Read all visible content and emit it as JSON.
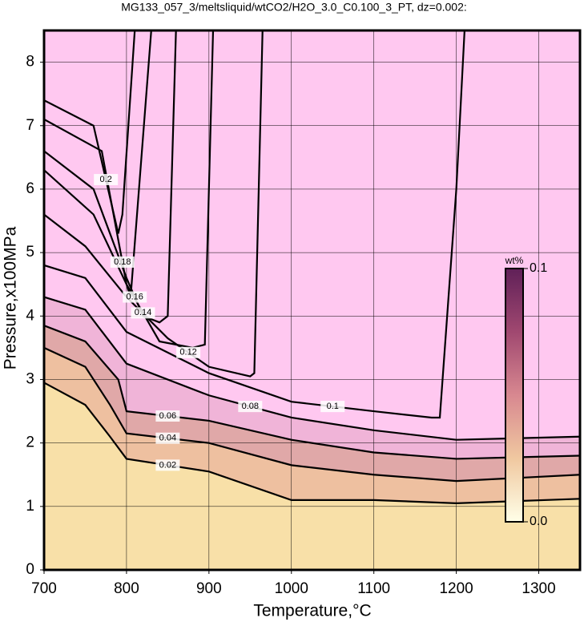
{
  "chart_data": {
    "type": "contour",
    "title": "MG133_057_3/meltsliquid/wtCO2/H2O_3.0_C0.100_3_PT, dz=0.002:",
    "xlabel": "Temperature,°C",
    "ylabel": "Pressure,x100MPa",
    "xlim": [
      700,
      1350
    ],
    "xticks": [
      700,
      800,
      900,
      1000,
      1100,
      1200,
      1300
    ],
    "ylim": [
      0,
      8.5
    ],
    "yticks": [
      0,
      1,
      2,
      3,
      4,
      5,
      6,
      7,
      8
    ],
    "grid": true,
    "background": "#ffc8f0",
    "contours": [
      {
        "level": 0.02,
        "fill": "#f8e0a8",
        "x": [
          700,
          750,
          780,
          800,
          900,
          1000,
          1100,
          1200,
          1350
        ],
        "y": [
          2.95,
          2.6,
          2.1,
          1.75,
          1.55,
          1.1,
          1.1,
          1.05,
          1.12
        ]
      },
      {
        "level": 0.04,
        "fill": "#eec0a0",
        "x": [
          700,
          750,
          780,
          800,
          900,
          1000,
          1100,
          1200,
          1350
        ],
        "y": [
          3.5,
          3.2,
          2.6,
          2.15,
          2.0,
          1.65,
          1.5,
          1.4,
          1.5
        ]
      },
      {
        "level": 0.06,
        "fill": "#e0a8a8",
        "x": [
          700,
          750,
          790,
          800,
          900,
          1000,
          1100,
          1200,
          1350
        ],
        "y": [
          3.85,
          3.6,
          3.0,
          2.5,
          2.35,
          2.05,
          1.85,
          1.75,
          1.8
        ]
      },
      {
        "level": 0.08,
        "fill": "#f0b4d8",
        "x": [
          700,
          750,
          800,
          900,
          1000,
          1100,
          1200,
          1350
        ],
        "y": [
          4.3,
          4.1,
          3.25,
          2.75,
          2.4,
          2.2,
          2.05,
          2.1
        ]
      },
      {
        "level": 0.1,
        "x": [
          700,
          750,
          800,
          900,
          1000,
          1100,
          1170,
          1180,
          1200,
          1210
        ],
        "y": [
          4.8,
          4.6,
          3.75,
          3.1,
          2.65,
          2.5,
          2.4,
          2.4,
          6,
          8.5
        ]
      },
      {
        "level": 0.12,
        "x": [
          700,
          750,
          800,
          850,
          900,
          950,
          955,
          965
        ],
        "y": [
          5.6,
          5.1,
          4.3,
          3.65,
          3.2,
          3.05,
          3.1,
          8.5
        ]
      },
      {
        "level": 0.14,
        "x": [
          700,
          760,
          800,
          840,
          880,
          895,
          905
        ],
        "y": [
          6.3,
          5.6,
          4.5,
          3.6,
          3.5,
          3.55,
          8.5
        ]
      },
      {
        "level": 0.16,
        "x": [
          700,
          760,
          800,
          820,
          840,
          850,
          860
        ],
        "y": [
          6.6,
          6.0,
          4.6,
          4.0,
          3.9,
          4.0,
          8.5
        ]
      },
      {
        "level": 0.18,
        "x": [
          700,
          770,
          790,
          800,
          805,
          830
        ],
        "y": [
          7.1,
          6.6,
          5.2,
          4.5,
          4.3,
          8.5
        ]
      },
      {
        "level": 0.2,
        "x": [
          700,
          760,
          790,
          795,
          810
        ],
        "y": [
          7.4,
          7.0,
          5.3,
          5.6,
          8.5
        ]
      }
    ],
    "colorbar": {
      "label": "wt%",
      "range": [
        0,
        0.1
      ],
      "ticks": [
        {
          "value": 0,
          "label": "0.0"
        },
        0.1
      ],
      "colors": [
        "#ffffe8",
        "#f0c8a0",
        "#d88890",
        "#a04870",
        "#602058"
      ]
    }
  }
}
